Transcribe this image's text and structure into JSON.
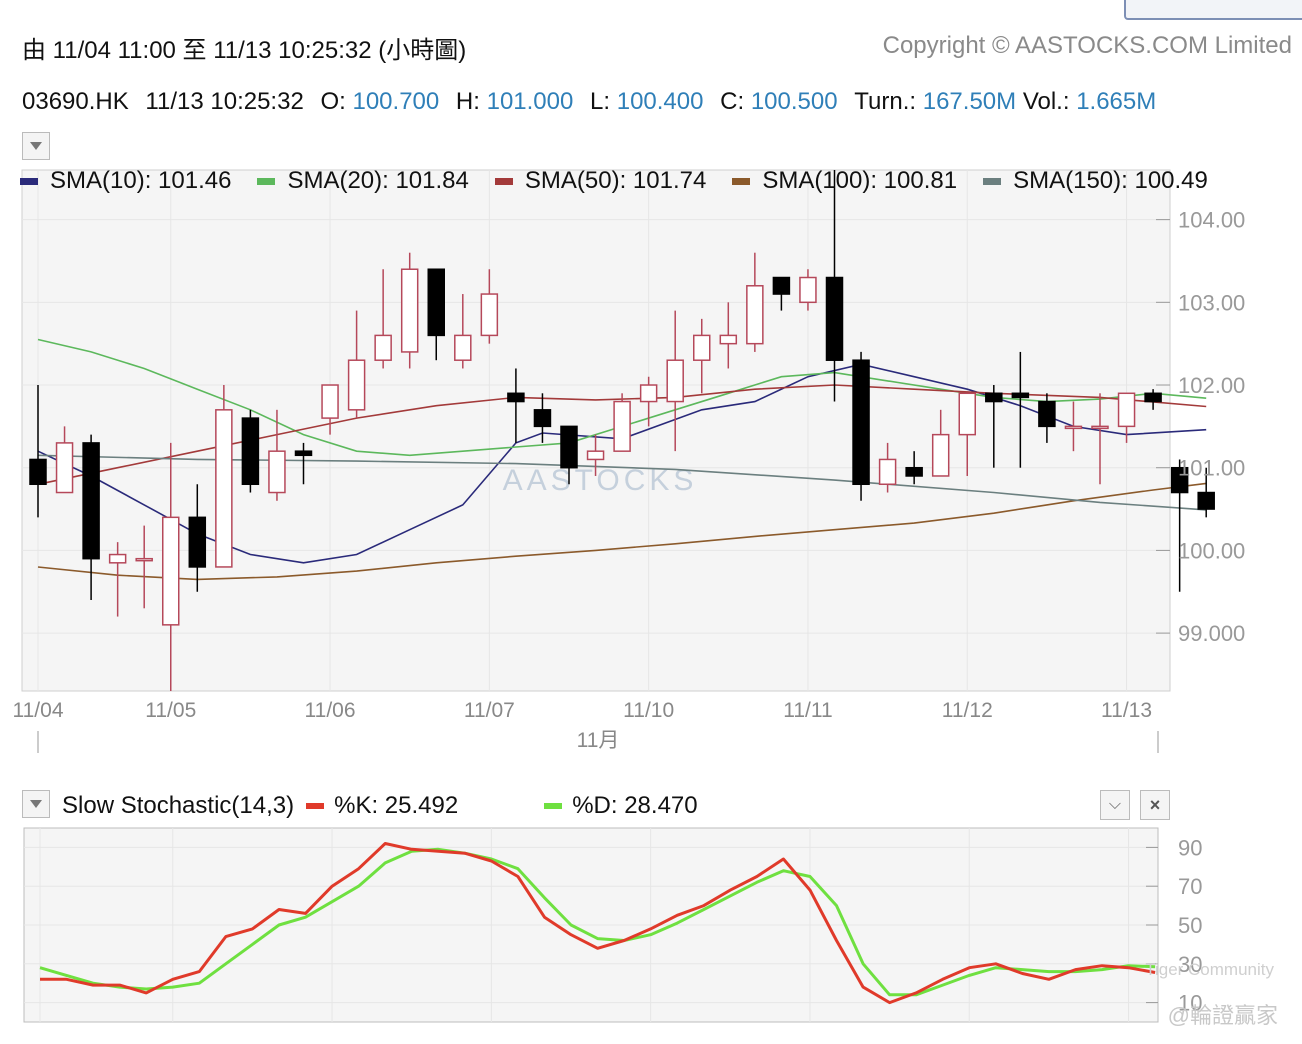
{
  "header": {
    "range_text": "由  11/04 11:00 至  11/13 10:25:32 (小時圖)",
    "copyright": "Copyright © AASTOCKS.COM Limited"
  },
  "quote": {
    "symbol": "03690.HK",
    "datetime": "11/13 10:25:32",
    "open_label": "O:",
    "open": "100.700",
    "high_label": "H:",
    "high": "101.000",
    "low_label": "L:",
    "low": "100.400",
    "close_label": "C:",
    "close": "100.500",
    "turn_label": "Turn.:",
    "turn": "167.50M",
    "vol_label": "Vol.:",
    "vol": "1.665M"
  },
  "sma_legend": [
    {
      "text": "SMA(10): 101.46",
      "color": "#2a2a7a"
    },
    {
      "text": "SMA(20): 101.84",
      "color": "#5cb85c"
    },
    {
      "text": "SMA(50): 101.74",
      "color": "#a33a3a"
    },
    {
      "text": "SMA(100): 100.81",
      "color": "#8b5a2b"
    },
    {
      "text": "SMA(150): 100.49",
      "color": "#6b7f7f"
    }
  ],
  "stoch_legend": {
    "title": "Slow Stochastic(14,3)",
    "k_text": "%K: 25.492",
    "k_color": "#e03a2a",
    "d_text": "%D: 28.470",
    "d_color": "#6fe040"
  },
  "watermarks": {
    "center": "AASTOCKS",
    "tiger": "Tiger Community",
    "author": "@輪證贏家"
  },
  "chart_data": [
    {
      "type": "candlestick",
      "title": "",
      "x_tick_labels": [
        "11/04",
        "11/05",
        "11/06",
        "11/07",
        "11/10",
        "11/11",
        "11/12",
        "11/13"
      ],
      "x_tick_candle_index": [
        0,
        5,
        11,
        17,
        23,
        29,
        35,
        41
      ],
      "month_label": "11月",
      "y_ticks": [
        "104.00",
        "103.00",
        "102.00",
        "101.00",
        "100.00",
        "99.000"
      ],
      "ylim": [
        98.3,
        104.6
      ],
      "up_color": "#b5485a",
      "down_color": "#000000",
      "candles": [
        {
          "o": 101.1,
          "h": 102.0,
          "l": 100.4,
          "c": 100.8
        },
        {
          "o": 100.7,
          "h": 101.5,
          "l": 100.7,
          "c": 101.3
        },
        {
          "o": 101.3,
          "h": 101.4,
          "l": 99.4,
          "c": 99.9
        },
        {
          "o": 99.85,
          "h": 100.1,
          "l": 99.2,
          "c": 99.95
        },
        {
          "o": 99.9,
          "h": 100.3,
          "l": 99.3,
          "c": 99.9
        },
        {
          "o": 99.1,
          "h": 101.3,
          "l": 98.3,
          "c": 100.4
        },
        {
          "o": 100.4,
          "h": 100.8,
          "l": 99.5,
          "c": 99.8
        },
        {
          "o": 99.8,
          "h": 102.0,
          "l": 99.8,
          "c": 101.7
        },
        {
          "o": 101.6,
          "h": 101.7,
          "l": 100.7,
          "c": 100.8
        },
        {
          "o": 100.7,
          "h": 101.7,
          "l": 100.6,
          "c": 101.2
        },
        {
          "o": 101.2,
          "h": 101.3,
          "l": 100.8,
          "c": 101.15
        },
        {
          "o": 101.6,
          "h": 102.0,
          "l": 101.4,
          "c": 102.0
        },
        {
          "o": 101.7,
          "h": 102.9,
          "l": 101.6,
          "c": 102.3
        },
        {
          "o": 102.3,
          "h": 103.4,
          "l": 102.2,
          "c": 102.6
        },
        {
          "o": 102.4,
          "h": 103.6,
          "l": 102.2,
          "c": 103.4
        },
        {
          "o": 103.4,
          "h": 103.4,
          "l": 102.3,
          "c": 102.6
        },
        {
          "o": 102.3,
          "h": 103.1,
          "l": 102.2,
          "c": 102.6
        },
        {
          "o": 102.6,
          "h": 103.4,
          "l": 102.5,
          "c": 103.1
        },
        {
          "o": 101.9,
          "h": 102.2,
          "l": 101.3,
          "c": 101.8
        },
        {
          "o": 101.7,
          "h": 101.9,
          "l": 101.3,
          "c": 101.5
        },
        {
          "o": 101.5,
          "h": 101.5,
          "l": 100.8,
          "c": 101.0
        },
        {
          "o": 101.1,
          "h": 101.4,
          "l": 100.9,
          "c": 101.2
        },
        {
          "o": 101.2,
          "h": 101.9,
          "l": 101.2,
          "c": 101.8
        },
        {
          "o": 101.8,
          "h": 102.1,
          "l": 101.5,
          "c": 102.0
        },
        {
          "o": 101.8,
          "h": 102.9,
          "l": 101.2,
          "c": 102.3
        },
        {
          "o": 102.3,
          "h": 102.8,
          "l": 101.9,
          "c": 102.6
        },
        {
          "o": 102.5,
          "h": 103.0,
          "l": 102.2,
          "c": 102.6
        },
        {
          "o": 102.5,
          "h": 103.6,
          "l": 102.4,
          "c": 103.2
        },
        {
          "o": 103.3,
          "h": 103.3,
          "l": 102.9,
          "c": 103.1
        },
        {
          "o": 103.0,
          "h": 103.4,
          "l": 102.9,
          "c": 103.3
        },
        {
          "o": 103.3,
          "h": 104.6,
          "l": 101.8,
          "c": 102.3
        },
        {
          "o": 102.3,
          "h": 102.4,
          "l": 100.6,
          "c": 100.8
        },
        {
          "o": 100.8,
          "h": 101.3,
          "l": 100.7,
          "c": 101.1
        },
        {
          "o": 101.0,
          "h": 101.2,
          "l": 100.8,
          "c": 100.9
        },
        {
          "o": 100.9,
          "h": 101.7,
          "l": 100.9,
          "c": 101.4
        },
        {
          "o": 101.4,
          "h": 101.9,
          "l": 100.9,
          "c": 101.9
        },
        {
          "o": 101.9,
          "h": 102.0,
          "l": 101.0,
          "c": 101.8
        },
        {
          "o": 101.9,
          "h": 102.4,
          "l": 101.0,
          "c": 101.85
        },
        {
          "o": 101.8,
          "h": 101.9,
          "l": 101.3,
          "c": 101.5
        },
        {
          "o": 101.5,
          "h": 101.8,
          "l": 101.2,
          "c": 101.5
        },
        {
          "o": 101.5,
          "h": 101.9,
          "l": 100.8,
          "c": 101.5
        },
        {
          "o": 101.5,
          "h": 101.9,
          "l": 101.3,
          "c": 101.9
        },
        {
          "o": 101.9,
          "h": 101.95,
          "l": 101.7,
          "c": 101.8
        },
        {
          "o": 101.0,
          "h": 101.1,
          "l": 99.5,
          "c": 100.7
        },
        {
          "o": 100.7,
          "h": 101.0,
          "l": 100.4,
          "c": 100.5
        }
      ],
      "series": [
        {
          "name": "SMA(10)",
          "color": "#2a2a7a",
          "values": [
            [
              0,
              101.2
            ],
            [
              2,
              100.9
            ],
            [
              4,
              100.55
            ],
            [
              6,
              100.2
            ],
            [
              8,
              99.95
            ],
            [
              10,
              99.85
            ],
            [
              12,
              99.95
            ],
            [
              14,
              100.25
            ],
            [
              16,
              100.55
            ],
            [
              18,
              101.3
            ],
            [
              19,
              101.42
            ],
            [
              22,
              101.35
            ],
            [
              25,
              101.7
            ],
            [
              27,
              101.8
            ],
            [
              29,
              102.1
            ],
            [
              31,
              102.25
            ],
            [
              33,
              102.1
            ],
            [
              35,
              101.95
            ],
            [
              37,
              101.75
            ],
            [
              39,
              101.5
            ],
            [
              41,
              101.4
            ],
            [
              44,
              101.46
            ]
          ]
        },
        {
          "name": "SMA(20)",
          "color": "#5cb85c",
          "values": [
            [
              0,
              102.55
            ],
            [
              2,
              102.4
            ],
            [
              4,
              102.2
            ],
            [
              6,
              101.95
            ],
            [
              8,
              101.7
            ],
            [
              10,
              101.4
            ],
            [
              12,
              101.2
            ],
            [
              14,
              101.15
            ],
            [
              16,
              101.2
            ],
            [
              18,
              101.25
            ],
            [
              20,
              101.3
            ],
            [
              22,
              101.5
            ],
            [
              24,
              101.7
            ],
            [
              26,
              101.9
            ],
            [
              28,
              102.1
            ],
            [
              30,
              102.15
            ],
            [
              32,
              102.05
            ],
            [
              34,
              101.95
            ],
            [
              36,
              101.85
            ],
            [
              38,
              101.8
            ],
            [
              40,
              101.83
            ],
            [
              42,
              101.9
            ],
            [
              44,
              101.84
            ]
          ]
        },
        {
          "name": "SMA(50)",
          "color": "#a33a3a",
          "values": [
            [
              0,
              100.8
            ],
            [
              3,
              101.0
            ],
            [
              6,
              101.2
            ],
            [
              9,
              101.4
            ],
            [
              12,
              101.6
            ],
            [
              15,
              101.75
            ],
            [
              18,
              101.85
            ],
            [
              21,
              101.82
            ],
            [
              24,
              101.85
            ],
            [
              27,
              101.95
            ],
            [
              30,
              102.0
            ],
            [
              33,
              101.95
            ],
            [
              36,
              101.9
            ],
            [
              40,
              101.85
            ],
            [
              44,
              101.74
            ]
          ]
        },
        {
          "name": "SMA(100)",
          "color": "#8b5a2b",
          "values": [
            [
              0,
              99.8
            ],
            [
              3,
              99.7
            ],
            [
              6,
              99.65
            ],
            [
              9,
              99.68
            ],
            [
              12,
              99.75
            ],
            [
              15,
              99.85
            ],
            [
              18,
              99.93
            ],
            [
              21,
              100.0
            ],
            [
              24,
              100.08
            ],
            [
              27,
              100.17
            ],
            [
              30,
              100.25
            ],
            [
              33,
              100.33
            ],
            [
              36,
              100.45
            ],
            [
              39,
              100.6
            ],
            [
              42,
              100.73
            ],
            [
              44,
              100.81
            ]
          ]
        },
        {
          "name": "SMA(150)",
          "color": "#6b7f7f",
          "values": [
            [
              0,
              101.15
            ],
            [
              6,
              101.1
            ],
            [
              12,
              101.08
            ],
            [
              18,
              101.05
            ],
            [
              24,
              100.98
            ],
            [
              30,
              100.85
            ],
            [
              36,
              100.7
            ],
            [
              40,
              100.58
            ],
            [
              44,
              100.49
            ]
          ]
        }
      ]
    },
    {
      "type": "line",
      "title": "Slow Stochastic(14,3)",
      "y_ticks": [
        "90",
        "70",
        "50",
        "30",
        "10"
      ],
      "ylim": [
        0,
        100
      ],
      "series": [
        {
          "name": "%K",
          "color": "#e03a2a",
          "values": [
            [
              0,
              22
            ],
            [
              1,
              22
            ],
            [
              2,
              19
            ],
            [
              3,
              19
            ],
            [
              4,
              15
            ],
            [
              5,
              22
            ],
            [
              6,
              26
            ],
            [
              7,
              44
            ],
            [
              8,
              48
            ],
            [
              9,
              58
            ],
            [
              10,
              56
            ],
            [
              11,
              70
            ],
            [
              12,
              79
            ],
            [
              13,
              92
            ],
            [
              14,
              89
            ],
            [
              15,
              88
            ],
            [
              16,
              87
            ],
            [
              17,
              83
            ],
            [
              18,
              75
            ],
            [
              19,
              54
            ],
            [
              20,
              45
            ],
            [
              21,
              38
            ],
            [
              22,
              42
            ],
            [
              23,
              48
            ],
            [
              24,
              55
            ],
            [
              25,
              60
            ],
            [
              26,
              68
            ],
            [
              27,
              75
            ],
            [
              28,
              84
            ],
            [
              29,
              68
            ],
            [
              30,
              42
            ],
            [
              31,
              18
            ],
            [
              32,
              10
            ],
            [
              33,
              15
            ],
            [
              34,
              22
            ],
            [
              35,
              28
            ],
            [
              36,
              30
            ],
            [
              37,
              25
            ],
            [
              38,
              22
            ],
            [
              39,
              27
            ],
            [
              40,
              29
            ],
            [
              41,
              28
            ],
            [
              42,
              25.5
            ]
          ]
        },
        {
          "name": "%D",
          "color": "#6fe040",
          "values": [
            [
              0,
              28
            ],
            [
              1,
              24
            ],
            [
              2,
              20
            ],
            [
              3,
              18
            ],
            [
              4,
              17
            ],
            [
              5,
              18
            ],
            [
              6,
              20
            ],
            [
              7,
              30
            ],
            [
              8,
              40
            ],
            [
              9,
              50
            ],
            [
              10,
              54
            ],
            [
              11,
              62
            ],
            [
              12,
              70
            ],
            [
              13,
              82
            ],
            [
              14,
              88
            ],
            [
              15,
              89
            ],
            [
              16,
              87
            ],
            [
              17,
              84
            ],
            [
              18,
              79
            ],
            [
              19,
              64
            ],
            [
              20,
              50
            ],
            [
              21,
              43
            ],
            [
              22,
              42
            ],
            [
              23,
              45
            ],
            [
              24,
              51
            ],
            [
              25,
              58
            ],
            [
              26,
              65
            ],
            [
              27,
              72
            ],
            [
              28,
              78
            ],
            [
              29,
              75
            ],
            [
              30,
              60
            ],
            [
              31,
              30
            ],
            [
              32,
              14
            ],
            [
              33,
              14
            ],
            [
              34,
              19
            ],
            [
              35,
              24
            ],
            [
              36,
              28
            ],
            [
              37,
              27
            ],
            [
              38,
              26
            ],
            [
              39,
              26
            ],
            [
              40,
              27
            ],
            [
              41,
              29
            ],
            [
              42,
              28.47
            ]
          ]
        }
      ]
    }
  ]
}
